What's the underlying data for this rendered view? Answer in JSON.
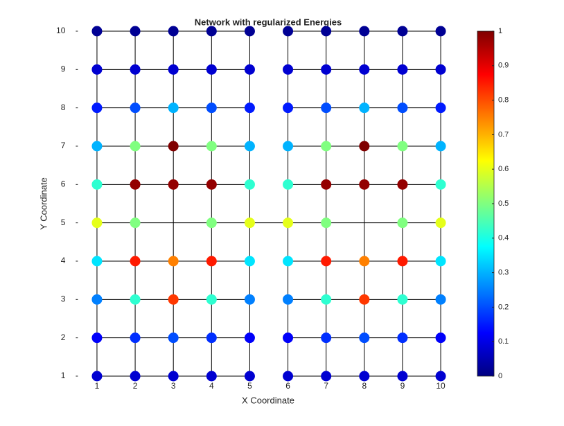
{
  "chart_data": {
    "type": "network",
    "title": "Network with regularized Energies",
    "x_label": "X Coordinate",
    "y_label": "Y Coordinate",
    "colormap": "jet",
    "xlim": [
      0.5,
      10.5
    ],
    "ylim": [
      1,
      10
    ],
    "xticks": [
      1,
      2,
      3,
      4,
      5,
      6,
      7,
      8,
      9,
      10
    ],
    "yticks": [
      1,
      2,
      3,
      4,
      5,
      6,
      7,
      8,
      9,
      10
    ],
    "clim": [
      0,
      1
    ],
    "cticks": [
      0,
      0.1,
      0.2,
      0.3,
      0.4,
      0.5,
      0.6,
      0.7,
      0.8,
      0.9,
      1
    ],
    "edge_color": "#000000",
    "edges": [
      [
        [
          1,
          10
        ],
        [
          5,
          10
        ]
      ],
      [
        [
          6,
          10
        ],
        [
          10,
          10
        ]
      ],
      [
        [
          1,
          9
        ],
        [
          5,
          9
        ]
      ],
      [
        [
          6,
          9
        ],
        [
          10,
          9
        ]
      ],
      [
        [
          1,
          8
        ],
        [
          5,
          8
        ]
      ],
      [
        [
          6,
          8
        ],
        [
          10,
          8
        ]
      ],
      [
        [
          1,
          7
        ],
        [
          5,
          7
        ]
      ],
      [
        [
          6,
          7
        ],
        [
          10,
          7
        ]
      ],
      [
        [
          1,
          6
        ],
        [
          5,
          6
        ]
      ],
      [
        [
          6,
          6
        ],
        [
          10,
          6
        ]
      ],
      [
        [
          1,
          5
        ],
        [
          10,
          5
        ]
      ],
      [
        [
          1,
          4
        ],
        [
          5,
          4
        ]
      ],
      [
        [
          6,
          4
        ],
        [
          10,
          4
        ]
      ],
      [
        [
          1,
          3
        ],
        [
          5,
          3
        ]
      ],
      [
        [
          6,
          3
        ],
        [
          10,
          3
        ]
      ],
      [
        [
          1,
          2
        ],
        [
          5,
          2
        ]
      ],
      [
        [
          6,
          2
        ],
        [
          10,
          2
        ]
      ],
      [
        [
          1,
          1
        ],
        [
          5,
          1
        ]
      ],
      [
        [
          6,
          1
        ],
        [
          10,
          1
        ]
      ],
      [
        [
          1,
          1
        ],
        [
          1,
          10
        ]
      ],
      [
        [
          2,
          1
        ],
        [
          2,
          10
        ]
      ],
      [
        [
          3,
          1
        ],
        [
          3,
          10
        ]
      ],
      [
        [
          4,
          1
        ],
        [
          4,
          10
        ]
      ],
      [
        [
          5,
          1
        ],
        [
          5,
          10
        ]
      ],
      [
        [
          6,
          1
        ],
        [
          6,
          10
        ]
      ],
      [
        [
          7,
          1
        ],
        [
          7,
          10
        ]
      ],
      [
        [
          8,
          1
        ],
        [
          8,
          10
        ]
      ],
      [
        [
          9,
          1
        ],
        [
          9,
          10
        ]
      ],
      [
        [
          10,
          1
        ],
        [
          10,
          10
        ]
      ]
    ],
    "x": [
      1,
      2,
      3,
      4,
      5,
      6,
      7,
      8,
      9,
      10,
      1,
      2,
      3,
      4,
      5,
      6,
      7,
      8,
      9,
      10,
      1,
      2,
      3,
      4,
      5,
      6,
      7,
      8,
      9,
      10,
      1,
      2,
      3,
      4,
      5,
      6,
      7,
      8,
      9,
      10,
      1,
      2,
      3,
      4,
      5,
      6,
      7,
      8,
      9,
      10,
      1,
      2,
      4,
      5,
      6,
      7,
      9,
      10,
      1,
      2,
      3,
      4,
      5,
      6,
      7,
      8,
      9,
      10,
      1,
      2,
      3,
      4,
      5,
      6,
      7,
      8,
      9,
      10,
      1,
      2,
      3,
      4,
      5,
      6,
      7,
      8,
      9,
      10,
      1,
      2,
      3,
      4,
      5,
      6,
      7,
      8,
      9,
      10
    ],
    "y": [
      10,
      10,
      10,
      10,
      10,
      10,
      10,
      10,
      10,
      10,
      9,
      9,
      9,
      9,
      9,
      9,
      9,
      9,
      9,
      9,
      8,
      8,
      8,
      8,
      8,
      8,
      8,
      8,
      8,
      8,
      7,
      7,
      7,
      7,
      7,
      7,
      7,
      7,
      7,
      7,
      6,
      6,
      6,
      6,
      6,
      6,
      6,
      6,
      6,
      6,
      5,
      5,
      5,
      5,
      5,
      5,
      5,
      5,
      4,
      4,
      4,
      4,
      4,
      4,
      4,
      4,
      4,
      4,
      3,
      3,
      3,
      3,
      3,
      3,
      3,
      3,
      3,
      3,
      2,
      2,
      2,
      2,
      2,
      2,
      2,
      2,
      2,
      2,
      1,
      1,
      1,
      1,
      1,
      1,
      1,
      1,
      1,
      1
    ],
    "values": [
      0.02,
      0.02,
      0.02,
      0.02,
      0.02,
      0.02,
      0.02,
      0.02,
      0.02,
      0.02,
      0.08,
      0.08,
      0.08,
      0.08,
      0.08,
      0.08,
      0.08,
      0.08,
      0.08,
      0.08,
      0.15,
      0.2,
      0.3,
      0.2,
      0.15,
      0.15,
      0.2,
      0.3,
      0.2,
      0.15,
      0.3,
      0.5,
      1,
      0.5,
      0.3,
      0.3,
      0.5,
      1,
      0.5,
      0.3,
      0.42,
      0.98,
      0.98,
      0.98,
      0.42,
      0.42,
      0.98,
      0.98,
      0.98,
      0.42,
      0.6,
      0.5,
      0.5,
      0.6,
      0.6,
      0.5,
      0.5,
      0.6,
      0.35,
      0.85,
      0.75,
      0.85,
      0.35,
      0.35,
      0.85,
      0.75,
      0.85,
      0.35,
      0.25,
      0.42,
      0.82,
      0.42,
      0.25,
      0.25,
      0.42,
      0.82,
      0.42,
      0.25,
      0.12,
      0.17,
      0.2,
      0.17,
      0.12,
      0.12,
      0.17,
      0.2,
      0.17,
      0.12,
      0.08,
      0.08,
      0.08,
      0.08,
      0.08,
      0.08,
      0.08,
      0.08,
      0.08,
      0.08
    ]
  }
}
